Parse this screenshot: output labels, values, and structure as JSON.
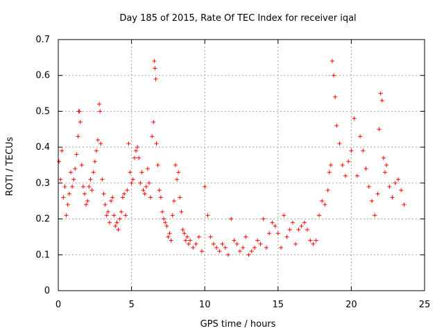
{
  "chart_data": {
    "type": "scatter",
    "title": "Day 185 of 2015, Rate Of TEC Index for receiver iqal",
    "xlabel": "GPS time / hours",
    "ylabel": "ROTI / TECUs",
    "xlim": [
      0,
      25
    ],
    "ylim": [
      0,
      0.7
    ],
    "xticks": [
      0,
      5,
      10,
      15,
      20,
      25
    ],
    "yticks": [
      0,
      0.1,
      0.2,
      0.3,
      0.4,
      0.5,
      0.6,
      0.7
    ],
    "xtick_labels": [
      "0",
      "5",
      "10",
      "15",
      "20",
      "25"
    ],
    "ytick_labels": [
      "0",
      "0.1",
      "0.2",
      "0.3",
      "0.4",
      "0.5",
      "0.6",
      "0.7"
    ],
    "grid": true,
    "marker": "+",
    "series": [
      {
        "name": "ROTI",
        "color": "#ff0000",
        "note": "dense per-epoch scatter; representative points estimated from the figure",
        "x": [
          0.05,
          0.15,
          0.25,
          0.35,
          0.45,
          0.55,
          0.65,
          0.75,
          0.85,
          0.95,
          1.05,
          1.15,
          1.25,
          1.35,
          1.4,
          1.45,
          1.5,
          1.6,
          1.7,
          1.8,
          1.9,
          2.0,
          2.1,
          2.2,
          2.3,
          2.4,
          2.5,
          2.6,
          2.7,
          2.8,
          2.85,
          2.9,
          3.0,
          3.1,
          3.2,
          3.3,
          3.4,
          3.5,
          3.6,
          3.7,
          3.8,
          3.9,
          4.0,
          4.1,
          4.2,
          4.3,
          4.4,
          4.5,
          4.6,
          4.7,
          4.8,
          4.9,
          5.0,
          5.1,
          5.2,
          5.3,
          5.4,
          5.5,
          5.6,
          5.7,
          5.8,
          5.9,
          6.0,
          6.1,
          6.2,
          6.3,
          6.4,
          6.5,
          6.55,
          6.6,
          6.65,
          6.7,
          6.8,
          6.9,
          7.0,
          7.1,
          7.2,
          7.3,
          7.4,
          7.5,
          7.6,
          7.7,
          7.8,
          7.9,
          8.0,
          8.1,
          8.2,
          8.3,
          8.4,
          8.5,
          8.6,
          8.7,
          8.8,
          8.9,
          9.0,
          9.2,
          9.4,
          9.6,
          9.8,
          10.0,
          10.2,
          10.4,
          10.6,
          10.8,
          11.0,
          11.2,
          11.4,
          11.6,
          11.8,
          12.0,
          12.2,
          12.4,
          12.6,
          12.8,
          13.0,
          13.2,
          13.4,
          13.6,
          13.8,
          14.0,
          14.2,
          14.4,
          14.6,
          14.8,
          15.0,
          15.2,
          15.4,
          15.6,
          15.8,
          16.0,
          16.2,
          16.4,
          16.6,
          16.8,
          17.0,
          17.2,
          17.4,
          17.6,
          17.8,
          18.0,
          18.2,
          18.4,
          18.5,
          18.6,
          18.7,
          18.8,
          18.9,
          19.0,
          19.2,
          19.4,
          19.6,
          19.8,
          20.0,
          20.2,
          20.4,
          20.6,
          20.8,
          21.0,
          21.2,
          21.4,
          21.6,
          21.8,
          21.9,
          22.0,
          22.1,
          22.2,
          22.3,
          22.4,
          22.6,
          22.8,
          23.0,
          23.2,
          23.4,
          23.6
        ],
        "y": [
          0.36,
          0.31,
          0.39,
          0.26,
          0.29,
          0.21,
          0.24,
          0.27,
          0.33,
          0.29,
          0.31,
          0.34,
          0.38,
          0.43,
          0.5,
          0.5,
          0.47,
          0.35,
          0.29,
          0.27,
          0.24,
          0.25,
          0.29,
          0.31,
          0.28,
          0.33,
          0.36,
          0.39,
          0.42,
          0.52,
          0.5,
          0.41,
          0.31,
          0.27,
          0.24,
          0.21,
          0.22,
          0.19,
          0.25,
          0.26,
          0.21,
          0.18,
          0.19,
          0.17,
          0.2,
          0.22,
          0.26,
          0.27,
          0.21,
          0.28,
          0.41,
          0.33,
          0.3,
          0.31,
          0.37,
          0.39,
          0.4,
          0.37,
          0.3,
          0.33,
          0.28,
          0.27,
          0.29,
          0.34,
          0.3,
          0.26,
          0.43,
          0.47,
          0.64,
          0.62,
          0.59,
          0.41,
          0.35,
          0.28,
          0.26,
          0.22,
          0.2,
          0.19,
          0.18,
          0.15,
          0.16,
          0.14,
          0.21,
          0.25,
          0.35,
          0.31,
          0.33,
          0.26,
          0.22,
          0.17,
          0.16,
          0.14,
          0.15,
          0.13,
          0.14,
          0.12,
          0.13,
          0.15,
          0.11,
          0.29,
          0.21,
          0.15,
          0.13,
          0.12,
          0.11,
          0.13,
          0.12,
          0.1,
          0.2,
          0.14,
          0.13,
          0.11,
          0.12,
          0.15,
          0.1,
          0.11,
          0.12,
          0.14,
          0.13,
          0.2,
          0.12,
          0.16,
          0.19,
          0.18,
          0.16,
          0.12,
          0.21,
          0.15,
          0.17,
          0.19,
          0.13,
          0.17,
          0.18,
          0.19,
          0.17,
          0.14,
          0.13,
          0.14,
          0.21,
          0.25,
          0.24,
          0.28,
          0.33,
          0.35,
          0.64,
          0.6,
          0.54,
          0.46,
          0.41,
          0.35,
          0.32,
          0.36,
          0.39,
          0.48,
          0.32,
          0.43,
          0.39,
          0.34,
          0.29,
          0.25,
          0.21,
          0.27,
          0.45,
          0.55,
          0.53,
          0.37,
          0.33,
          0.35,
          0.29,
          0.26,
          0.3,
          0.31,
          0.28,
          0.24
        ]
      }
    ]
  }
}
